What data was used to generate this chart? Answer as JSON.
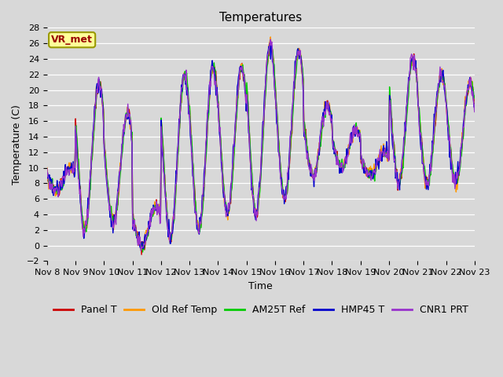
{
  "title": "Temperatures",
  "xlabel": "Time",
  "ylabel": "Temperature (C)",
  "ylim": [
    -2,
    28
  ],
  "yticks": [
    -2,
    0,
    2,
    4,
    6,
    8,
    10,
    12,
    14,
    16,
    18,
    20,
    22,
    24,
    26,
    28
  ],
  "xtick_labels": [
    "Nov 8",
    "Nov 9",
    "Nov 10",
    "Nov 11",
    "Nov 12",
    "Nov 13",
    "Nov 14",
    "Nov 15",
    "Nov 16",
    "Nov 17",
    "Nov 18",
    "Nov 19",
    "Nov 20",
    "Nov 21",
    "Nov 22",
    "Nov 23"
  ],
  "legend_entries": [
    "Panel T",
    "Old Ref Temp",
    "AM25T Ref",
    "HMP45 T",
    "CNR1 PRT"
  ],
  "line_colors": [
    "#cc0000",
    "#ff9900",
    "#00cc00",
    "#0000cc",
    "#9933cc"
  ],
  "line_widths": [
    1.0,
    1.0,
    1.0,
    1.0,
    1.0
  ],
  "bg_color": "#d8d8d8",
  "annotation_text": "VR_met",
  "annotation_color": "#990000",
  "annotation_bg": "#ffff99",
  "annotation_edge": "#999900",
  "title_fontsize": 11,
  "axis_fontsize": 9,
  "tick_fontsize": 8,
  "legend_fontsize": 9
}
